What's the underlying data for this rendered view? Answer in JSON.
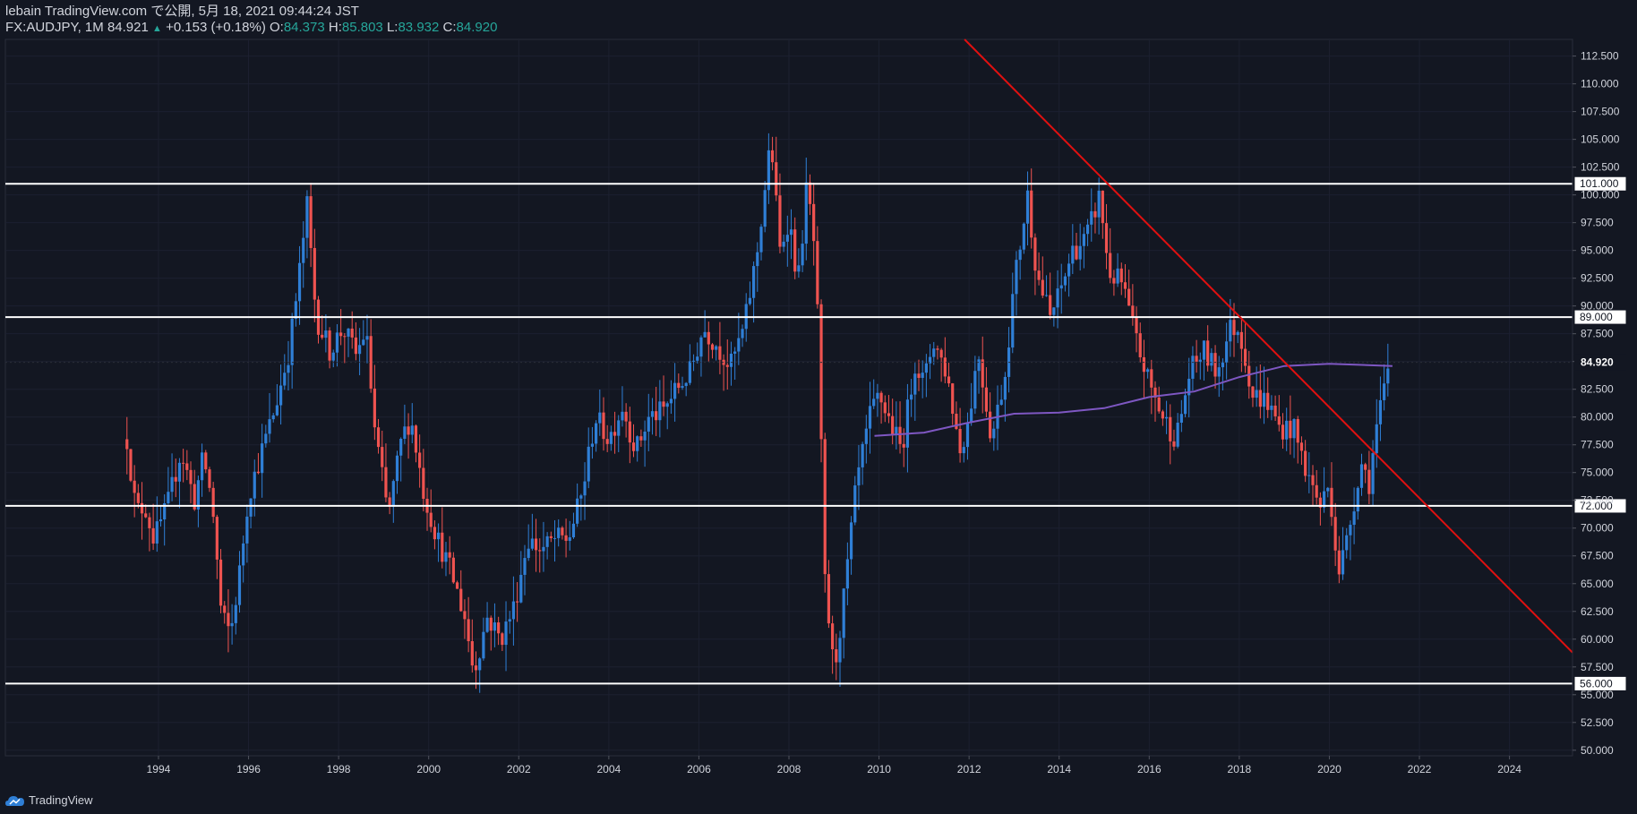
{
  "header": {
    "line1": "lebain TradingView.com で公開, 5月 18, 2021 09:44:24 JST",
    "symbol": "FX:AUDJPY, 1M",
    "price": "84.921",
    "change": "+0.153 (+0.18%)",
    "o_label": "O:",
    "o_value": "84.373",
    "h_label": "H:",
    "h_value": "85.803",
    "l_label": "L:",
    "l_value": "83.932",
    "c_label": "C:",
    "c_value": "84.920"
  },
  "footer": {
    "brand": "TradingView",
    "icon": "tradingview-cloud-icon"
  },
  "colors": {
    "background": "#131722",
    "up": "#2f7fd6",
    "down": "#ef5350",
    "ma": "#7e57c2",
    "trend": "#e01010",
    "level": "#ffffff"
  },
  "chart_data": {
    "type": "candlestick",
    "symbol": "FX:AUDJPY",
    "interval": "1M",
    "x_range": [
      1990.6,
      2025.4
    ],
    "y_range": [
      49.5,
      114.0
    ],
    "x_ticks": [
      "1994",
      "1996",
      "1998",
      "2000",
      "2002",
      "2004",
      "2006",
      "2008",
      "2010",
      "2012",
      "2014",
      "2016",
      "2018",
      "2020",
      "2022",
      "2024"
    ],
    "y_ticks": [
      "50.000",
      "52.500",
      "55.000",
      "57.500",
      "60.000",
      "62.500",
      "65.000",
      "67.500",
      "70.000",
      "72.500",
      "75.000",
      "77.500",
      "80.000",
      "82.500",
      "85.000",
      "87.500",
      "90.000",
      "92.500",
      "95.000",
      "97.500",
      "100.000",
      "102.500",
      "105.000",
      "107.500",
      "110.000",
      "112.500"
    ],
    "horizontal_levels": [
      {
        "value": 101.0,
        "label": "101.000"
      },
      {
        "value": 89.0,
        "label": "89.000"
      },
      {
        "value": 72.0,
        "label": "72.000"
      },
      {
        "value": 56.0,
        "label": "56.000"
      }
    ],
    "last_price": {
      "value": 84.92,
      "label": "84.920"
    },
    "trendline": [
      [
        2011.9,
        114.0
      ],
      [
        2025.4,
        58.8
      ]
    ],
    "moving_average": [
      [
        2009.9,
        78.3
      ],
      [
        2011,
        78.6
      ],
      [
        2012,
        79.5
      ],
      [
        2013,
        80.3
      ],
      [
        2014,
        80.4
      ],
      [
        2015,
        80.8
      ],
      [
        2016,
        81.8
      ],
      [
        2017,
        82.3
      ],
      [
        2018,
        83.6
      ],
      [
        2019,
        84.6
      ],
      [
        2020,
        84.8
      ],
      [
        2021.4,
        84.6
      ]
    ],
    "price_path": [
      [
        1993.3,
        78.0
      ],
      [
        1993.5,
        71.5
      ],
      [
        1993.7,
        72.0
      ],
      [
        1993.9,
        69.0
      ],
      [
        1994.2,
        72.0
      ],
      [
        1994.5,
        77.0
      ],
      [
        1994.8,
        72.5
      ],
      [
        1995.0,
        76.5
      ],
      [
        1995.2,
        72.0
      ],
      [
        1995.4,
        62.0
      ],
      [
        1995.6,
        60.5
      ],
      [
        1995.8,
        66.0
      ],
      [
        1996.0,
        73.0
      ],
      [
        1996.3,
        77.0
      ],
      [
        1996.6,
        81.0
      ],
      [
        1996.9,
        86.0
      ],
      [
        1997.1,
        92.0
      ],
      [
        1997.3,
        99.0
      ],
      [
        1997.5,
        89.0
      ],
      [
        1997.8,
        86.0
      ],
      [
        1998.1,
        88.0
      ],
      [
        1998.4,
        85.5
      ],
      [
        1998.6,
        88.0
      ],
      [
        1998.8,
        79.0
      ],
      [
        1999.1,
        71.0
      ],
      [
        1999.4,
        78.0
      ],
      [
        1999.6,
        80.0
      ],
      [
        1999.9,
        73.0
      ],
      [
        2000.2,
        69.0
      ],
      [
        2000.5,
        66.0
      ],
      [
        2000.8,
        62.0
      ],
      [
        2001.0,
        57.0
      ],
      [
        2001.3,
        62.0
      ],
      [
        2001.6,
        60.0
      ],
      [
        2001.9,
        63.0
      ],
      [
        2002.2,
        69.0
      ],
      [
        2002.5,
        68.0
      ],
      [
        2002.8,
        69.0
      ],
      [
        2003.1,
        69.0
      ],
      [
        2003.4,
        73.0
      ],
      [
        2003.7,
        80.0
      ],
      [
        2004.0,
        78.0
      ],
      [
        2004.3,
        81.0
      ],
      [
        2004.6,
        77.0
      ],
      [
        2004.9,
        80.0
      ],
      [
        2005.2,
        80.5
      ],
      [
        2005.5,
        82.5
      ],
      [
        2005.8,
        84.0
      ],
      [
        2006.1,
        88.0
      ],
      [
        2006.4,
        86.5
      ],
      [
        2006.7,
        84.5
      ],
      [
        2007.0,
        88.0
      ],
      [
        2007.3,
        95.0
      ],
      [
        2007.6,
        105.0
      ],
      [
        2007.8,
        95.0
      ],
      [
        2008.0,
        98.0
      ],
      [
        2008.2,
        92.0
      ],
      [
        2008.4,
        101.0
      ],
      [
        2008.6,
        94.0
      ],
      [
        2008.8,
        65.0
      ],
      [
        2009.0,
        57.0
      ],
      [
        2009.2,
        63.0
      ],
      [
        2009.5,
        74.0
      ],
      [
        2009.8,
        80.0
      ],
      [
        2010.0,
        82.0
      ],
      [
        2010.3,
        79.0
      ],
      [
        2010.5,
        77.0
      ],
      [
        2010.8,
        85.0
      ],
      [
        2011.0,
        83.0
      ],
      [
        2011.2,
        87.0
      ],
      [
        2011.5,
        84.0
      ],
      [
        2011.8,
        77.0
      ],
      [
        2012.0,
        80.0
      ],
      [
        2012.2,
        86.0
      ],
      [
        2012.5,
        78.0
      ],
      [
        2012.8,
        84.0
      ],
      [
        2013.0,
        92.0
      ],
      [
        2013.3,
        100.0
      ],
      [
        2013.5,
        93.0
      ],
      [
        2013.8,
        89.0
      ],
      [
        2014.0,
        91.0
      ],
      [
        2014.3,
        95.0
      ],
      [
        2014.6,
        96.0
      ],
      [
        2014.9,
        100.0
      ],
      [
        2015.1,
        93.0
      ],
      [
        2015.4,
        92.0
      ],
      [
        2015.7,
        87.0
      ],
      [
        2016.0,
        83.0
      ],
      [
        2016.3,
        80.0
      ],
      [
        2016.6,
        78.0
      ],
      [
        2016.9,
        84.0
      ],
      [
        2017.2,
        86.0
      ],
      [
        2017.5,
        84.0
      ],
      [
        2017.8,
        88.0
      ],
      [
        2018.0,
        88.0
      ],
      [
        2018.3,
        82.0
      ],
      [
        2018.6,
        81.5
      ],
      [
        2018.9,
        79.0
      ],
      [
        2019.2,
        79.0
      ],
      [
        2019.5,
        75.0
      ],
      [
        2019.8,
        72.0
      ],
      [
        2020.0,
        74.0
      ],
      [
        2020.2,
        66.0
      ],
      [
        2020.4,
        69.0
      ],
      [
        2020.7,
        76.0
      ],
      [
        2020.9,
        74.0
      ],
      [
        2021.0,
        78.0
      ],
      [
        2021.2,
        82.0
      ],
      [
        2021.35,
        84.92
      ]
    ]
  }
}
